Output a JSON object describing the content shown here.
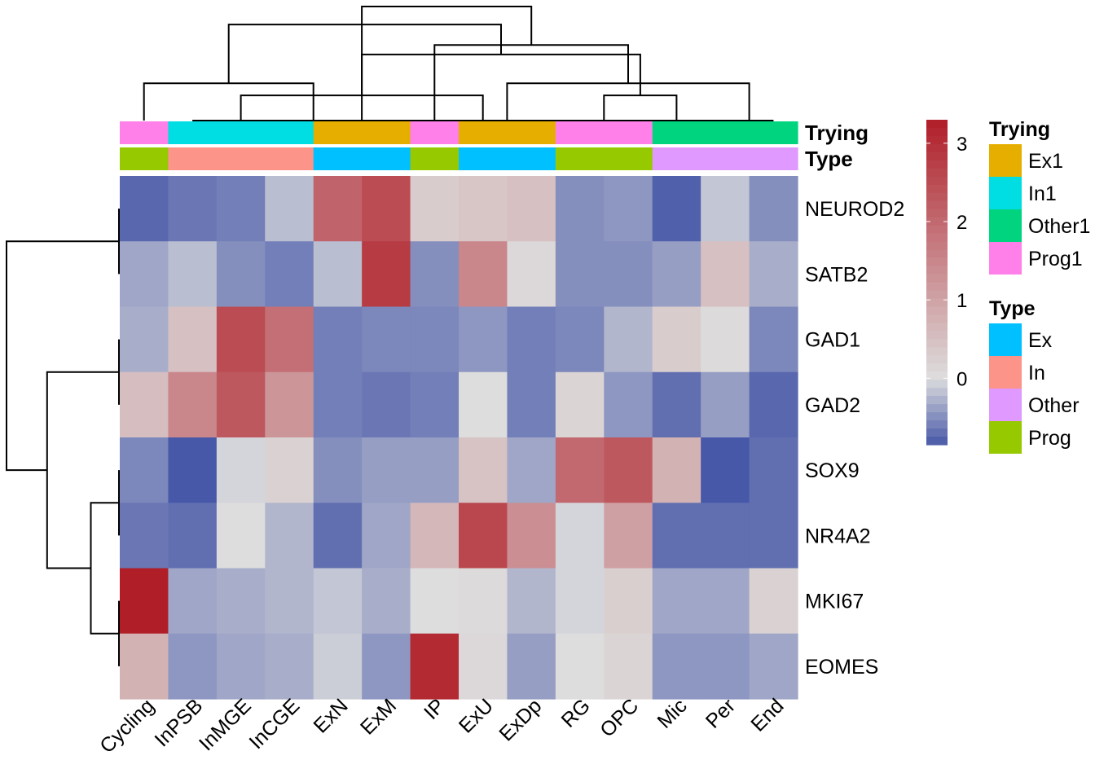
{
  "chart_data": {
    "type": "heatmap",
    "columns": [
      "Cycling",
      "InPSB",
      "InMGE",
      "InCGE",
      "ExN",
      "ExM",
      "IP",
      "ExU",
      "ExDp",
      "RG",
      "OPC",
      "Mic",
      "Per",
      "End"
    ],
    "rows": [
      "NEUROD2",
      "SATB2",
      "GAD1",
      "GAD2",
      "SOX9",
      "NR4A2",
      "MKI67",
      "EOMES"
    ],
    "values": [
      [
        -0.75,
        -0.65,
        -0.6,
        -0.2,
        2.1,
        2.5,
        0.3,
        0.4,
        0.5,
        -0.5,
        -0.45,
        -0.8,
        -0.15,
        -0.5
      ],
      [
        -0.35,
        -0.2,
        -0.5,
        -0.6,
        -0.2,
        2.8,
        -0.5,
        1.5,
        0.1,
        -0.5,
        -0.5,
        -0.4,
        0.5,
        -0.3
      ],
      [
        -0.3,
        0.5,
        2.5,
        1.9,
        -0.6,
        -0.55,
        -0.55,
        -0.45,
        -0.6,
        -0.55,
        -0.25,
        0.3,
        0.05,
        -0.55
      ],
      [
        0.55,
        1.5,
        2.3,
        1.25,
        -0.6,
        -0.65,
        -0.6,
        0.0,
        -0.6,
        0.15,
        -0.45,
        -0.7,
        -0.4,
        -0.75
      ],
      [
        -0.55,
        -0.85,
        -0.05,
        0.2,
        -0.5,
        -0.4,
        -0.4,
        0.45,
        -0.35,
        2.0,
        2.3,
        0.75,
        -0.85,
        -0.7
      ],
      [
        -0.65,
        -0.7,
        0.0,
        -0.25,
        -0.7,
        -0.35,
        0.65,
        2.6,
        1.35,
        -0.05,
        1.05,
        -0.7,
        -0.7,
        -0.7
      ],
      [
        3.3,
        -0.35,
        -0.3,
        -0.25,
        -0.15,
        -0.3,
        0.0,
        0.05,
        -0.25,
        -0.05,
        0.25,
        -0.35,
        -0.35,
        0.2
      ],
      [
        0.75,
        -0.45,
        -0.35,
        -0.3,
        -0.1,
        -0.45,
        3.1,
        0.1,
        -0.4,
        0.0,
        0.15,
        -0.45,
        -0.45,
        -0.35
      ]
    ],
    "annotations": [
      {
        "name": "Trying",
        "values": [
          "Prog1",
          "In1",
          "In1",
          "In1",
          "Ex1",
          "Ex1",
          "Prog1",
          "Ex1",
          "Ex1",
          "Prog1",
          "Prog1",
          "Other1",
          "Other1",
          "Other1"
        ],
        "legend": [
          {
            "label": "Ex1",
            "color": "#E6AF00"
          },
          {
            "label": "In1",
            "color": "#00DDE3"
          },
          {
            "label": "Other1",
            "color": "#00D47F"
          },
          {
            "label": "Prog1",
            "color": "#FF80E8"
          }
        ]
      },
      {
        "name": "Type",
        "values": [
          "Prog",
          "In",
          "In",
          "In",
          "Ex",
          "Ex",
          "Prog",
          "Ex",
          "Ex",
          "Prog",
          "Prog",
          "Other",
          "Other",
          "Other"
        ],
        "legend": [
          {
            "label": "Ex",
            "color": "#00C0FF"
          },
          {
            "label": "In",
            "color": "#FC948A"
          },
          {
            "label": "Other",
            "color": "#DF99FF"
          },
          {
            "label": "Prog",
            "color": "#96C900"
          }
        ]
      }
    ],
    "color_scale": {
      "stops": [
        {
          "value": -0.85,
          "color": "#4758A8"
        },
        {
          "value": 0.0,
          "color": "#DDDDDD"
        },
        {
          "value": 3.3,
          "color": "#B01E28"
        }
      ],
      "ticks": [
        "0",
        "1",
        "2",
        "3"
      ]
    },
    "column_dendrogram": [
      [
        1,
        13,
        0
      ],
      [
        3,
        4,
        0
      ],
      [
        2,
        14,
        1
      ],
      [
        0,
        15,
        2
      ],
      [
        4,
        5,
        0
      ],
      [
        7,
        8,
        0
      ],
      [
        9,
        10,
        0
      ],
      [
        12,
        13,
        0
      ],
      [
        11,
        20,
        1
      ],
      [
        19,
        21,
        2
      ],
      [
        18,
        22,
        3
      ],
      [
        6,
        23,
        4
      ],
      [
        17,
        24,
        5
      ],
      [
        16,
        25,
        6
      ]
    ],
    "row_dendrogram": [
      [
        0,
        1,
        0
      ],
      [
        2,
        3,
        0
      ],
      [
        4,
        5,
        0
      ],
      [
        6,
        7,
        0
      ],
      [
        10,
        11,
        1
      ],
      [
        9,
        12,
        2
      ],
      [
        8,
        13,
        3
      ]
    ]
  }
}
